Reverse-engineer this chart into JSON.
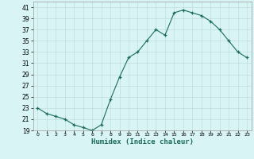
{
  "x": [
    0,
    1,
    2,
    3,
    4,
    5,
    6,
    7,
    8,
    9,
    10,
    11,
    12,
    13,
    14,
    15,
    16,
    17,
    18,
    19,
    20,
    21,
    22,
    23
  ],
  "y": [
    23,
    22,
    21.5,
    21,
    20,
    19.5,
    19,
    20,
    24.5,
    28.5,
    32,
    33,
    35,
    37,
    36,
    40,
    40.5,
    40,
    39.5,
    38.5,
    37,
    35,
    33,
    32
  ],
  "xlabel": "Humidex (Indice chaleur)",
  "ylim_min": 19,
  "ylim_max": 42,
  "yticks": [
    19,
    21,
    23,
    25,
    27,
    29,
    31,
    33,
    35,
    37,
    39,
    41
  ],
  "xticks": [
    0,
    1,
    2,
    3,
    4,
    5,
    6,
    7,
    8,
    9,
    10,
    11,
    12,
    13,
    14,
    15,
    16,
    17,
    18,
    19,
    20,
    21,
    22,
    23
  ],
  "line_color": "#1a6b5a",
  "marker": "+",
  "bg_color": "#d8f4f4",
  "grid_major_color": "#c0dede",
  "grid_minor_color": "#daeaea"
}
